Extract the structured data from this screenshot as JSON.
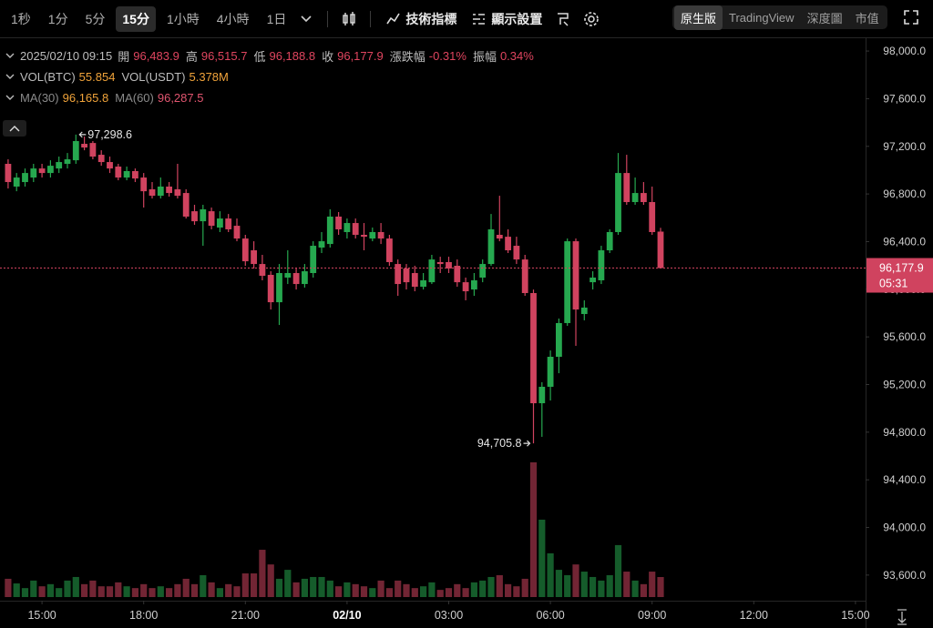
{
  "toolbar": {
    "intervals": [
      "1秒",
      "1分",
      "5分",
      "15分",
      "1小時",
      "4小時",
      "1日"
    ],
    "active_interval": 3,
    "tools": [
      "技術指標",
      "顯示設置"
    ],
    "views": [
      "原生版",
      "TradingView",
      "深度圖",
      "市值"
    ],
    "active_view": 0
  },
  "info": {
    "time": "2025/02/10 09:15",
    "fields": [
      {
        "label": "開",
        "value": "96,483.9"
      },
      {
        "label": "高",
        "value": "96,515.7"
      },
      {
        "label": "低",
        "value": "96,188.8"
      },
      {
        "label": "收",
        "value": "96,177.9"
      },
      {
        "label": "漲跌幅",
        "value": "-0.31%"
      },
      {
        "label": "振幅",
        "value": "0.34%"
      }
    ],
    "volume": [
      {
        "label": "VOL(BTC)",
        "value": "55.854"
      },
      {
        "label": "VOL(USDT)",
        "value": "5.378M"
      }
    ],
    "ma": [
      {
        "label": "MA(30)",
        "value": "96,165.8"
      },
      {
        "label": "MA(60)",
        "value": "96,287.5"
      }
    ]
  },
  "chart_data": {
    "type": "candlestick",
    "x": [
      "14:00",
      "14:15",
      "14:30",
      "14:45",
      "15:00",
      "15:15",
      "15:30",
      "15:45",
      "16:00",
      "16:15",
      "16:30",
      "16:45",
      "17:00",
      "17:15",
      "17:30",
      "17:45",
      "18:00",
      "18:15",
      "18:30",
      "18:45",
      "19:00",
      "19:15",
      "19:30",
      "19:45",
      "20:00",
      "20:15",
      "20:30",
      "20:45",
      "21:00",
      "21:15",
      "21:30",
      "21:45",
      "22:00",
      "22:15",
      "22:30",
      "22:45",
      "23:00",
      "23:15",
      "23:30",
      "23:45",
      "00:00",
      "00:15",
      "00:30",
      "00:45",
      "01:00",
      "01:15",
      "01:30",
      "01:45",
      "02:00",
      "02:15",
      "02:30",
      "02:45",
      "03:00",
      "03:15",
      "03:30",
      "03:45",
      "04:00",
      "04:15",
      "04:30",
      "04:45",
      "05:00",
      "05:15",
      "05:30",
      "05:45",
      "06:00",
      "06:15",
      "06:30",
      "06:45",
      "07:00",
      "07:15",
      "07:30",
      "07:45",
      "08:00",
      "08:15",
      "08:30",
      "08:45",
      "09:00",
      "09:15"
    ],
    "open": [
      97053,
      96862,
      96900,
      96938,
      97014,
      96976,
      97014,
      97053,
      97083,
      97221,
      97228,
      97129,
      97068,
      97030,
      96938,
      96992,
      96938,
      96839,
      96785,
      96862,
      96839,
      96808,
      96655,
      96571,
      96655,
      96518,
      96594,
      96533,
      96426,
      96327,
      96212,
      96121,
      95891,
      96098,
      96136,
      96044,
      96136,
      96350,
      96380,
      96610,
      96480,
      96556,
      96457,
      96426,
      96480,
      96426,
      96212,
      96174,
      96136,
      96021,
      96059,
      96228,
      96228,
      96197,
      96059,
      95998,
      96098,
      96212,
      96457,
      96441,
      96365,
      96250,
      95968,
      95043,
      95181,
      95433,
      95716,
      96403,
      95792,
      96059,
      96075,
      96327,
      96480,
      96976,
      96732,
      96808,
      96732,
      96483.9
    ],
    "high": [
      97091,
      96976,
      97014,
      97053,
      97053,
      97083,
      97114,
      97144,
      97298.6,
      97282,
      97244,
      97167,
      97114,
      97053,
      97030,
      97014,
      96976,
      96900,
      96938,
      96900,
      97053,
      96839,
      96709,
      96709,
      96686,
      96655,
      96632,
      96594,
      96457,
      96403,
      96289,
      96151,
      96212,
      96327,
      96174,
      96212,
      96403,
      96480,
      96671,
      96648,
      96594,
      96594,
      96556,
      96518,
      96556,
      96457,
      96250,
      96212,
      96197,
      96136,
      96289,
      96273,
      96273,
      96250,
      96098,
      96136,
      96250,
      96632,
      96785,
      96503,
      96441,
      96289,
      95998,
      95219,
      95486,
      95754,
      96426,
      96426,
      95907,
      96151,
      96365,
      96503,
      97144,
      97129,
      96938,
      96900,
      96862,
      96515.7
    ],
    "low": [
      96846,
      96823,
      96862,
      96900,
      96938,
      96938,
      96976,
      97014,
      97053,
      97167,
      97091,
      97037,
      96976,
      96915,
      96915,
      96900,
      96686,
      96762,
      96762,
      96778,
      96762,
      96594,
      96541,
      96365,
      96503,
      96480,
      96480,
      96403,
      96197,
      96174,
      96075,
      95830,
      95700,
      96044,
      95998,
      96014,
      96098,
      96304,
      96350,
      96457,
      96426,
      96426,
      96327,
      96403,
      96380,
      96197,
      95945,
      95998,
      95983,
      95998,
      96044,
      96136,
      96136,
      96021,
      95907,
      95945,
      96059,
      96197,
      96403,
      96304,
      96212,
      95945,
      94705.8,
      94761,
      95066,
      95295,
      95693,
      95525,
      95739,
      95998,
      96044,
      96304,
      96457,
      96709,
      96709,
      96709,
      96457,
      96188.8
    ],
    "close": [
      96900,
      96938,
      96976,
      97014,
      96976,
      97037,
      97068,
      97091,
      97244,
      97190,
      97114,
      97068,
      97014,
      96938,
      96992,
      96930,
      96823,
      96785,
      96862,
      96808,
      96785,
      96610,
      96571,
      96671,
      96533,
      96594,
      96503,
      96426,
      96235,
      96212,
      96113,
      95891,
      96136,
      96136,
      96044,
      96151,
      96365,
      96403,
      96610,
      96503,
      96556,
      96457,
      96441,
      96480,
      96426,
      96228,
      96044,
      96059,
      96021,
      96075,
      96250,
      96212,
      96174,
      96059,
      95983,
      96075,
      96212,
      96503,
      96426,
      96327,
      96250,
      95968,
      95043,
      95181,
      95433,
      95716,
      96403,
      95830,
      95846,
      96098,
      96327,
      96480,
      96976,
      96732,
      96808,
      96732,
      96480,
      96177.9
    ],
    "volume": [
      51,
      38,
      25,
      46,
      30,
      36,
      25,
      46,
      56,
      36,
      46,
      30,
      30,
      41,
      30,
      25,
      36,
      25,
      30,
      25,
      36,
      51,
      36,
      61,
      41,
      25,
      36,
      30,
      66,
      66,
      132,
      91,
      51,
      76,
      41,
      51,
      56,
      56,
      46,
      30,
      41,
      36,
      30,
      25,
      46,
      25,
      46,
      36,
      25,
      30,
      41,
      20,
      25,
      36,
      25,
      41,
      46,
      56,
      61,
      36,
      30,
      51,
      376,
      216,
      122,
      76,
      61,
      91,
      71,
      56,
      46,
      61,
      145,
      71,
      46,
      36,
      71,
      55.854
    ],
    "up_color": "#26a84f",
    "down_color": "#d0435f",
    "ylim": [
      93385,
      98100
    ],
    "yticks": [
      {
        "value": 93600,
        "label": "93,600.0"
      },
      {
        "value": 94000,
        "label": "94,000.0"
      },
      {
        "value": 94400,
        "label": "94,400.0"
      },
      {
        "value": 94800,
        "label": "94,800.0"
      },
      {
        "value": 95200,
        "label": "95,200.0"
      },
      {
        "value": 95600,
        "label": "95,600.0"
      },
      {
        "value": 96000,
        "label": "96,000.0"
      },
      {
        "value": 96400,
        "label": "96,400.0"
      },
      {
        "value": 96800,
        "label": "96,800.0"
      },
      {
        "value": 97200,
        "label": "97,200.0"
      },
      {
        "value": 97600,
        "label": "97,600.0"
      },
      {
        "value": 98000,
        "label": "98,000.0"
      }
    ],
    "xticks": [
      "15:00",
      "18:00",
      "21:00",
      {
        "value": "00:00",
        "label": "02/10"
      },
      "03:00",
      "06:00",
      "09:00",
      "12:00",
      "15:00"
    ],
    "grid": false,
    "annotations": [
      {
        "value": 97298.6,
        "label": "97,298.6"
      },
      {
        "value": 94705.8,
        "label": "94,705.8"
      }
    ],
    "last_price": {
      "value": 96177.9,
      "label": "96,177.9"
    },
    "countdown": "05:31"
  }
}
